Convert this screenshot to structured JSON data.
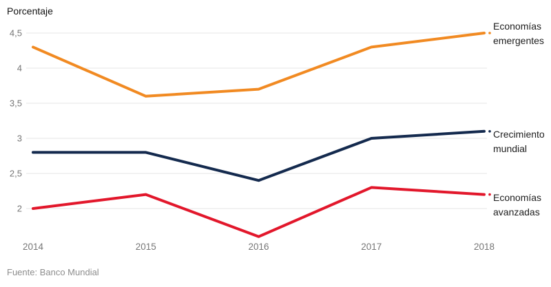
{
  "title": "Porcentaje",
  "source": "Fuente: Banco Mundial",
  "chart_data": {
    "type": "line",
    "title": "Porcentaje",
    "xlabel": "",
    "ylabel": "Porcentaje",
    "x": [
      "2014",
      "2015",
      "2016",
      "2017",
      "2018"
    ],
    "ylim": [
      2,
      4.5
    ],
    "grid": true,
    "legend_position": "right-inline",
    "yticks": [
      {
        "value": 2,
        "label": "2"
      },
      {
        "value": 2.5,
        "label": "2,5"
      },
      {
        "value": 3,
        "label": "3"
      },
      {
        "value": 3.5,
        "label": "3,5"
      },
      {
        "value": 4,
        "label": "4"
      },
      {
        "value": 4.5,
        "label": "4,5"
      }
    ],
    "series": [
      {
        "name": "Economías emergentes",
        "label": "Economías\nemergentes",
        "color": "#F18A22",
        "values": [
          4.3,
          3.6,
          3.7,
          4.3,
          4.5
        ]
      },
      {
        "name": "Crecimiento mundial",
        "label": "Crecimiento\nmundial",
        "color": "#142A4E",
        "values": [
          2.8,
          2.8,
          2.4,
          3.0,
          3.1
        ]
      },
      {
        "name": "Economías avanzadas",
        "label": "Economías\navanzadas",
        "color": "#E2172B",
        "values": [
          2.0,
          2.2,
          1.6,
          2.3,
          2.2
        ]
      }
    ]
  }
}
